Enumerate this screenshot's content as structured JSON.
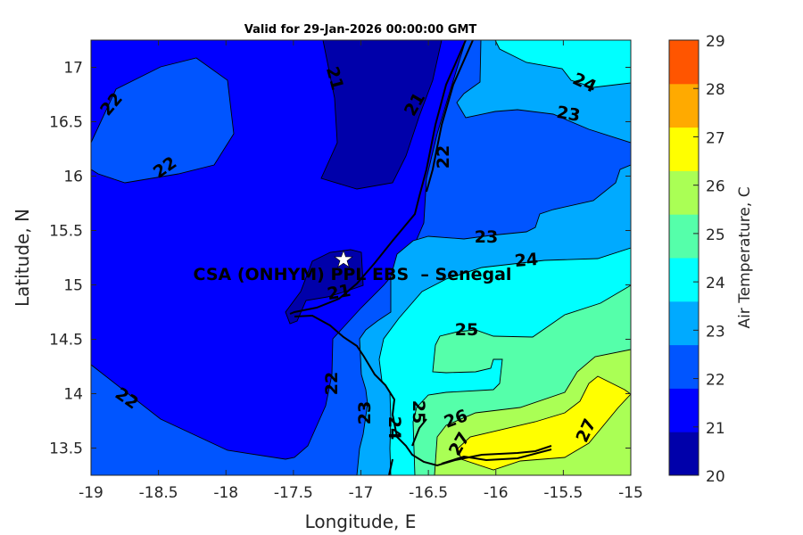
{
  "chart_data": {
    "type": "contour",
    "title": "Valid for 29-Jan-2026 00:00:00 GMT",
    "xlabel": "Longitude, E",
    "ylabel": "Latitude, N",
    "xlim": [
      -19,
      -15
    ],
    "ylim": [
      13.25,
      17.25
    ],
    "xticks": [
      "-19",
      "-18.5",
      "-18",
      "-17.5",
      "-17",
      "-16.5",
      "-16",
      "-15.5",
      "-15"
    ],
    "yticks": [
      "13.5",
      "14",
      "14.5",
      "15",
      "15.5",
      "16",
      "16.5",
      "17"
    ],
    "levels": [
      20,
      21,
      22,
      23,
      24,
      25,
      26,
      27,
      28,
      29
    ],
    "level_colors": [
      "#0000aa",
      "#0000ff",
      "#0055ff",
      "#00aaff",
      "#00ffff",
      "#55ffaa",
      "#aaff55",
      "#ffff00",
      "#ffaa00",
      "#ff5500"
    ],
    "colorbar": {
      "label": "Air Temperature, C",
      "ticks": [
        "20",
        "21",
        "22",
        "23",
        "24",
        "25",
        "26",
        "27",
        "28",
        "29"
      ]
    },
    "contour_labels": [
      "22",
      "22",
      "21",
      "21",
      "22",
      "24",
      "23",
      "23",
      "24",
      "21",
      "25",
      "22",
      "22",
      "23",
      "24",
      "25",
      "26",
      "27",
      "27"
    ],
    "site": {
      "name": "CSA (ONHYM) PPL EBS  – Senegal",
      "lon": -17.12,
      "lat": 15.23,
      "marker": "star"
    }
  }
}
